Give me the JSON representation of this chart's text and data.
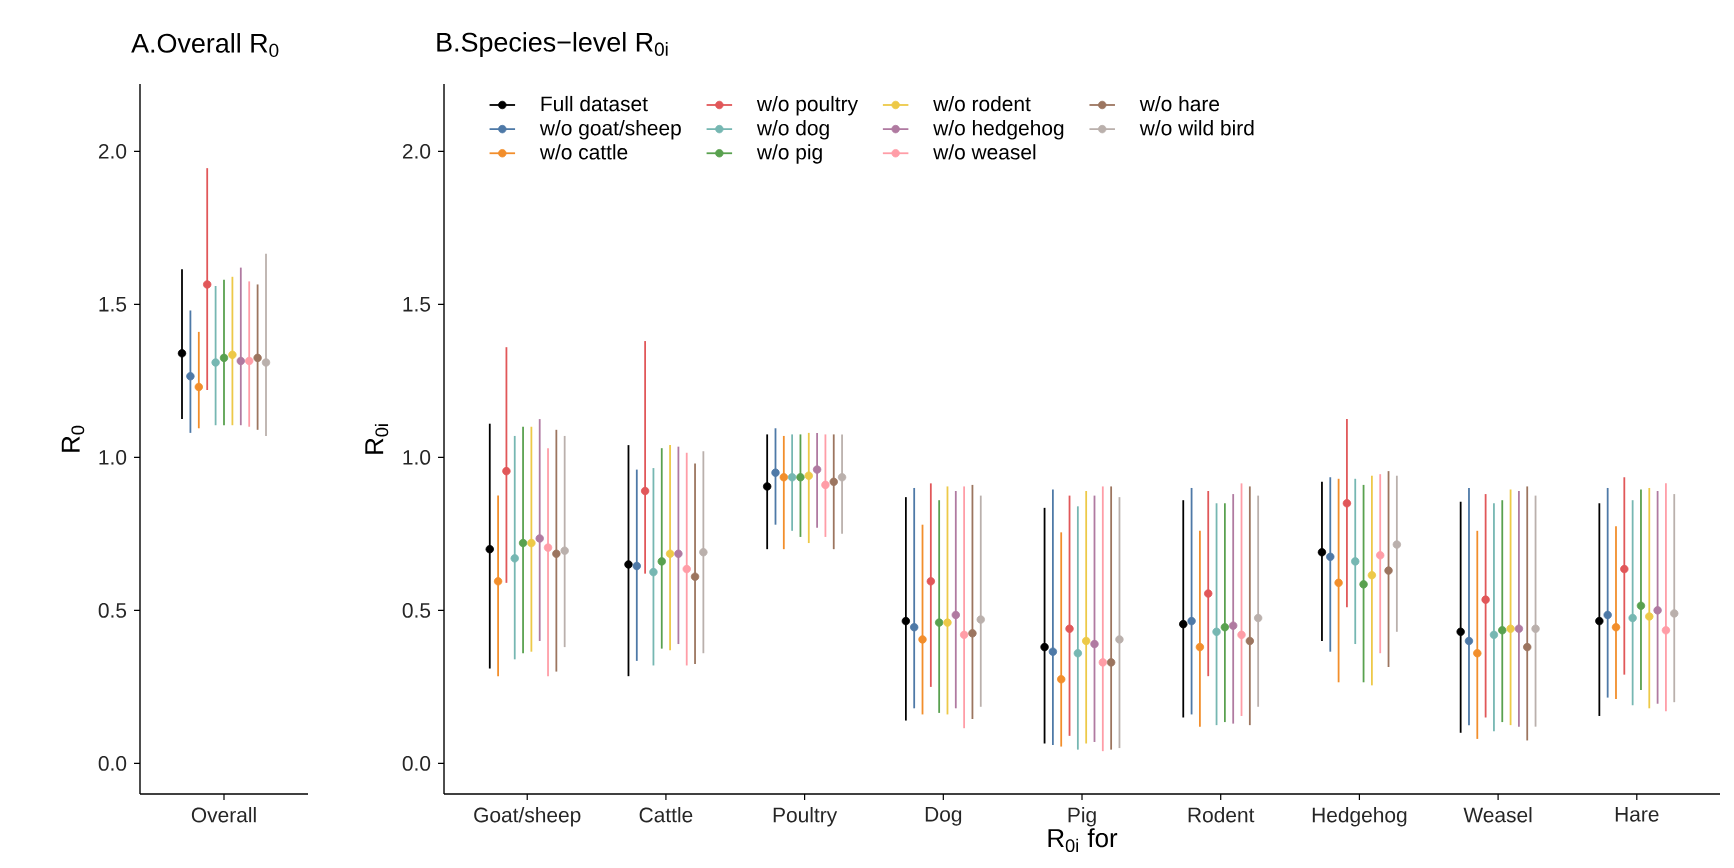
{
  "chart_data": [
    {
      "type": "scatter",
      "title": "A.Overall R$_{0}$",
      "ylabel": "R$_{0}$",
      "categories": [
        "Overall"
      ],
      "marker": "circle",
      "ylim": [
        -0.1,
        2.22
      ],
      "yticks": [
        {
          "value": 0,
          "label": "0.0"
        },
        {
          "value": 0.5,
          "label": "0.5"
        },
        {
          "value": 1,
          "label": "1.0"
        },
        {
          "value": 1.5,
          "label": "1.5"
        },
        {
          "value": 2,
          "label": "2.0"
        }
      ],
      "series": [
        {
          "color": "#000000",
          "values": [
            1.34
          ],
          "errors": [
            [
              1.125,
              1.615
            ]
          ]
        },
        {
          "color": "#4e79a7",
          "values": [
            1.265
          ],
          "errors": [
            [
              1.08,
              1.48
            ]
          ]
        },
        {
          "color": "#f28e2b",
          "values": [
            1.23
          ],
          "errors": [
            [
              1.095,
              1.41
            ]
          ]
        },
        {
          "color": "#e15759",
          "values": [
            1.565
          ],
          "errors": [
            [
              1.22,
              1.945
            ]
          ]
        },
        {
          "color": "#76b7b2",
          "values": [
            1.31
          ],
          "errors": [
            [
              1.105,
              1.56
            ]
          ]
        },
        {
          "color": "#59a14f",
          "values": [
            1.325
          ],
          "errors": [
            [
              1.105,
              1.58
            ]
          ]
        },
        {
          "color": "#edc948",
          "values": [
            1.335
          ],
          "errors": [
            [
              1.105,
              1.59
            ]
          ]
        },
        {
          "color": "#b07aa1",
          "values": [
            1.315
          ],
          "errors": [
            [
              1.105,
              1.62
            ]
          ]
        },
        {
          "color": "#ff9da7",
          "values": [
            1.315
          ],
          "errors": [
            [
              1.1,
              1.575
            ]
          ]
        },
        {
          "color": "#9c755f",
          "values": [
            1.325
          ],
          "errors": [
            [
              1.09,
              1.565
            ]
          ]
        },
        {
          "color": "#bab0ac",
          "values": [
            1.31
          ],
          "errors": [
            [
              1.07,
              1.665
            ]
          ]
        }
      ]
    },
    {
      "type": "scatter",
      "title": "B.Species−level R$_{0i}$",
      "ylabel": "R$_{0i}$",
      "xlabel": "R$_{0i}$ for",
      "categories": [
        "Goat/sheep",
        "Cattle",
        "Poultry",
        "Dog",
        "Pig",
        "Rodent",
        "Hedgehog",
        "Weasel",
        "Hare"
      ],
      "marker": "circle",
      "legend": "top left",
      "ylim": [
        -0.1,
        2.22
      ],
      "yticks": [
        {
          "value": 0,
          "label": "0.0"
        },
        {
          "value": 0.5,
          "label": "0.5"
        },
        {
          "value": 1,
          "label": "1.0"
        },
        {
          "value": 1.5,
          "label": "1.5"
        },
        {
          "value": 2,
          "label": "2.0"
        }
      ],
      "series": [
        {
          "name": "Full dataset",
          "color": "#000000",
          "values": [
            0.7,
            0.65,
            0.905,
            0.465,
            0.38,
            0.455,
            0.69,
            0.43,
            0.465
          ],
          "errors": [
            [
              0.31,
              1.11
            ],
            [
              0.285,
              1.04
            ],
            [
              0.7,
              1.075
            ],
            [
              0.14,
              0.87
            ],
            [
              0.065,
              0.835
            ],
            [
              0.15,
              0.86
            ],
            [
              0.4,
              0.92
            ],
            [
              0.1,
              0.855
            ],
            [
              0.155,
              0.85
            ]
          ]
        },
        {
          "name": "w/o goat/sheep",
          "color": "#4e79a7",
          "values": [
            null,
            0.645,
            0.95,
            0.445,
            0.365,
            0.465,
            0.675,
            0.4,
            0.485
          ],
          "errors": [
            null,
            [
              0.335,
              0.96
            ],
            [
              0.78,
              1.095
            ],
            [
              0.18,
              0.9
            ],
            [
              0.06,
              0.895
            ],
            [
              0.16,
              0.9
            ],
            [
              0.365,
              0.935
            ],
            [
              0.125,
              0.9
            ],
            [
              0.215,
              0.9
            ]
          ]
        },
        {
          "name": "w/o cattle",
          "color": "#f28e2b",
          "values": [
            0.595,
            null,
            0.935,
            0.405,
            0.275,
            0.38,
            0.59,
            0.36,
            0.445
          ],
          "errors": [
            [
              0.285,
              0.875
            ],
            null,
            [
              0.7,
              1.07
            ],
            [
              0.16,
              0.78
            ],
            [
              0.055,
              0.755
            ],
            [
              0.12,
              0.76
            ],
            [
              0.265,
              0.93
            ],
            [
              0.08,
              0.76
            ],
            [
              0.21,
              0.775
            ]
          ]
        },
        {
          "name": "w/o poultry",
          "color": "#e15759",
          "values": [
            0.955,
            0.89,
            null,
            0.595,
            0.44,
            0.555,
            0.85,
            0.535,
            0.635
          ],
          "errors": [
            [
              0.59,
              1.36
            ],
            [
              0.62,
              1.38
            ],
            null,
            [
              0.25,
              0.915
            ],
            [
              0.09,
              0.875
            ],
            [
              0.285,
              0.89
            ],
            [
              0.51,
              1.125
            ],
            [
              0.15,
              0.88
            ],
            [
              0.29,
              0.935
            ]
          ]
        },
        {
          "name": "w/o dog",
          "color": "#76b7b2",
          "values": [
            0.67,
            0.625,
            0.935,
            null,
            0.36,
            0.43,
            0.66,
            0.42,
            0.475
          ],
          "errors": [
            [
              0.34,
              1.07
            ],
            [
              0.32,
              0.965
            ],
            [
              0.76,
              1.075
            ],
            null,
            [
              0.045,
              0.84
            ],
            [
              0.125,
              0.85
            ],
            [
              0.39,
              0.93
            ],
            [
              0.105,
              0.85
            ],
            [
              0.19,
              0.86
            ]
          ]
        },
        {
          "name": "w/o pig",
          "color": "#59a14f",
          "values": [
            0.72,
            0.66,
            0.935,
            0.46,
            null,
            0.445,
            0.585,
            0.435,
            0.515
          ],
          "errors": [
            [
              0.36,
              1.1
            ],
            [
              0.375,
              1.03
            ],
            [
              0.74,
              1.075
            ],
            [
              0.165,
              0.86
            ],
            null,
            [
              0.135,
              0.85
            ],
            [
              0.265,
              0.91
            ],
            [
              0.135,
              0.86
            ],
            [
              0.24,
              0.895
            ]
          ]
        },
        {
          "name": "w/o rodent",
          "color": "#edc948",
          "values": [
            0.72,
            0.685,
            0.94,
            0.46,
            0.4,
            null,
            0.615,
            0.44,
            0.48
          ],
          "errors": [
            [
              0.365,
              1.1
            ],
            [
              0.37,
              1.04
            ],
            [
              0.72,
              1.08
            ],
            [
              0.16,
              0.905
            ],
            [
              0.065,
              0.89
            ],
            null,
            [
              0.255,
              0.94
            ],
            [
              0.125,
              0.895
            ],
            [
              0.18,
              0.9
            ]
          ]
        },
        {
          "name": "w/o hedgehog",
          "color": "#b07aa1",
          "values": [
            0.735,
            0.685,
            0.96,
            0.485,
            0.39,
            0.45,
            null,
            0.44,
            0.5
          ],
          "errors": [
            [
              0.4,
              1.125
            ],
            [
              0.39,
              1.035
            ],
            [
              0.77,
              1.08
            ],
            [
              0.18,
              0.89
            ],
            [
              0.07,
              0.875
            ],
            [
              0.13,
              0.88
            ],
            null,
            [
              0.12,
              0.89
            ],
            [
              0.195,
              0.89
            ]
          ]
        },
        {
          "name": "w/o weasel",
          "color": "#ff9da7",
          "values": [
            0.705,
            0.635,
            0.91,
            0.42,
            0.33,
            0.42,
            0.68,
            null,
            0.435
          ],
          "errors": [
            [
              0.285,
              1.03
            ],
            [
              0.32,
              1.015
            ],
            [
              0.74,
              1.075
            ],
            [
              0.115,
              0.905
            ],
            [
              0.04,
              0.905
            ],
            [
              0.155,
              0.915
            ],
            [
              0.36,
              0.945
            ],
            null,
            [
              0.17,
              0.915
            ]
          ]
        },
        {
          "name": "w/o hare",
          "color": "#9c755f",
          "values": [
            0.685,
            0.61,
            0.92,
            0.425,
            0.33,
            0.4,
            0.63,
            0.38,
            null
          ],
          "errors": [
            [
              0.3,
              1.09
            ],
            [
              0.325,
              0.98
            ],
            [
              0.7,
              1.075
            ],
            [
              0.145,
              0.91
            ],
            [
              0.045,
              0.905
            ],
            [
              0.125,
              0.905
            ],
            [
              0.315,
              0.955
            ],
            [
              0.075,
              0.905
            ],
            null
          ]
        },
        {
          "name": "w/o wild bird",
          "color": "#bab0ac",
          "values": [
            0.695,
            0.69,
            0.935,
            0.47,
            0.405,
            0.475,
            0.715,
            0.44,
            0.49
          ],
          "errors": [
            [
              0.38,
              1.07
            ],
            [
              0.36,
              1.02
            ],
            [
              0.75,
              1.075
            ],
            [
              0.185,
              0.875
            ],
            [
              0.05,
              0.87
            ],
            [
              0.185,
              0.875
            ],
            [
              0.43,
              0.94
            ],
            [
              0.12,
              0.875
            ],
            [
              0.2,
              0.88
            ]
          ]
        }
      ]
    }
  ]
}
